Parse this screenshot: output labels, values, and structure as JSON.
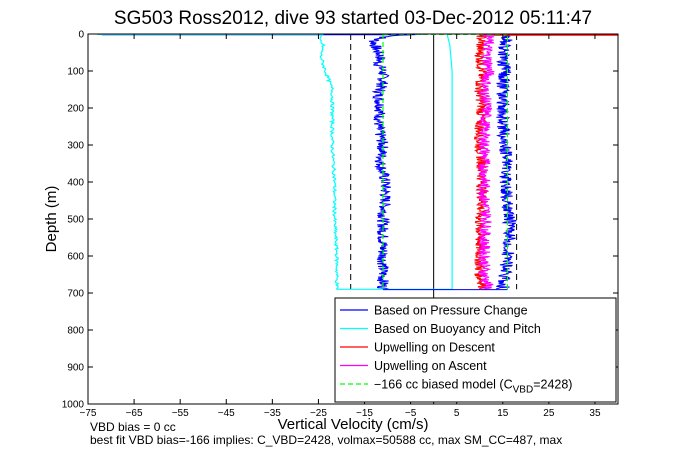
{
  "chart_data": {
    "type": "line",
    "title": "SG503 Ross2012, dive 93 started 03-Dec-2012 05:11:47",
    "xlabel": "Vertical Velocity (cm/s)",
    "ylabel": "Depth (m)",
    "xlim": [
      -75,
      40
    ],
    "ylim": [
      0,
      1000
    ],
    "y_reversed": true,
    "x_ticks": [
      "−75",
      "−65",
      "−55",
      "−45",
      "−35",
      "−25",
      "−15",
      "−5",
      "5",
      "15",
      "25",
      "35"
    ],
    "x_tick_values": [
      -75,
      -65,
      -55,
      -45,
      -35,
      -25,
      -15,
      -5,
      5,
      15,
      25,
      35
    ],
    "y_ticks": [
      "0",
      "100",
      "200",
      "300",
      "400",
      "500",
      "600",
      "700",
      "800",
      "900",
      "1000"
    ],
    "y_tick_values": [
      0,
      100,
      200,
      300,
      400,
      500,
      600,
      700,
      800,
      900,
      1000
    ],
    "grid": false,
    "legend_position": "bottom-right",
    "legend": [
      {
        "label": "Based on Pressure Change",
        "color": "#0000ff",
        "style": "solid"
      },
      {
        "label": "Based on Buoyancy and Pitch",
        "color": "#00ffff",
        "style": "solid"
      },
      {
        "label": "Upwelling on Descent",
        "color": "#ff0000",
        "style": "solid"
      },
      {
        "label": "Upwelling on Ascent",
        "color": "#ff00ff",
        "style": "solid"
      },
      {
        "label_pre": "−166 cc biased model (C",
        "label_sub": "VBD",
        "label_post": "=2428)",
        "color": "#00ff00",
        "style": "dashed"
      }
    ],
    "series": [
      {
        "name": "Based on Pressure Change",
        "color": "#0000ff",
        "descent": {
          "depth": [
            0,
            5,
            12,
            20,
            40,
            60,
            80,
            100,
            130,
            160,
            200,
            250,
            300,
            350,
            400,
            450,
            500,
            550,
            600,
            650,
            690
          ],
          "velocity": [
            -2,
            -9,
            -12,
            -13,
            -12.5,
            -11.5,
            -12,
            -11,
            -11,
            -12,
            -11.5,
            -12,
            -11,
            -11.5,
            -10.5,
            -10.5,
            -11,
            -11,
            -11,
            -11,
            -11
          ]
        },
        "ascent": {
          "depth": [
            690,
            650,
            600,
            550,
            500,
            450,
            400,
            350,
            300,
            250,
            200,
            150,
            100,
            60,
            30,
            10,
            0
          ],
          "velocity": [
            15,
            15.5,
            16,
            16.5,
            16.5,
            16,
            15.5,
            16,
            15.5,
            15,
            15,
            15,
            15.5,
            15,
            15.5,
            16,
            15
          ]
        }
      },
      {
        "name": "Based on Buoyancy and Pitch",
        "color": "#00ffff",
        "descent": {
          "depth": [
            0,
            10,
            30,
            60,
            100,
            150,
            200,
            300,
            400,
            500,
            600,
            690
          ],
          "velocity": [
            -24,
            -25,
            -24,
            -24.5,
            -23.5,
            -22,
            -22,
            -22,
            -21.5,
            -21.5,
            -21,
            -21
          ]
        },
        "ascent": {
          "depth": [
            690,
            600,
            500,
            400,
            300,
            200,
            100,
            30,
            5,
            0
          ],
          "velocity": [
            4,
            4,
            4,
            4,
            4,
            4,
            4,
            3.5,
            3,
            3
          ]
        }
      },
      {
        "name": "Upwelling on Descent",
        "color": "#ff0000",
        "depth": [
          0,
          50,
          100,
          150,
          200,
          250,
          300,
          350,
          400,
          450,
          500,
          550,
          600,
          650,
          690
        ],
        "velocity": [
          10.5,
          10,
          10.5,
          10,
          10.5,
          10,
          10,
          10.5,
          10.5,
          10.5,
          10,
          10,
          10,
          10,
          11
        ]
      },
      {
        "name": "Upwelling on Ascent",
        "color": "#ff00ff",
        "depth": [
          0,
          50,
          100,
          150,
          200,
          250,
          300,
          350,
          400,
          450,
          500,
          550,
          600,
          650,
          690
        ],
        "velocity": [
          12,
          11.5,
          12,
          11,
          11.5,
          11,
          11,
          11,
          11,
          11,
          11.5,
          11,
          11,
          11,
          12
        ]
      },
      {
        "name": "−166 cc biased model (C_VBD=2428)",
        "color": "#00ff00",
        "descent": {
          "depth": [
            0,
            100,
            200,
            300,
            400,
            500,
            600,
            690
          ],
          "velocity": [
            -11,
            -11,
            -11,
            -11,
            -11,
            -11,
            -11,
            -11
          ]
        },
        "ascent": {
          "depth": [
            690,
            600,
            500,
            400,
            300,
            200,
            100,
            0
          ],
          "velocity": [
            16,
            16,
            16,
            16,
            16,
            16,
            16,
            16
          ]
        }
      }
    ],
    "reference_lines": {
      "vertical_solid": [
        0
      ],
      "vertical_dashed": [
        -18,
        18
      ]
    }
  },
  "notes": {
    "line1": "VBD bias = 0 cc",
    "line2": "best fit VBD bias=-166 implies: C_VBD=2428, volmax=50588 cc, max SM_CC=487, max"
  }
}
